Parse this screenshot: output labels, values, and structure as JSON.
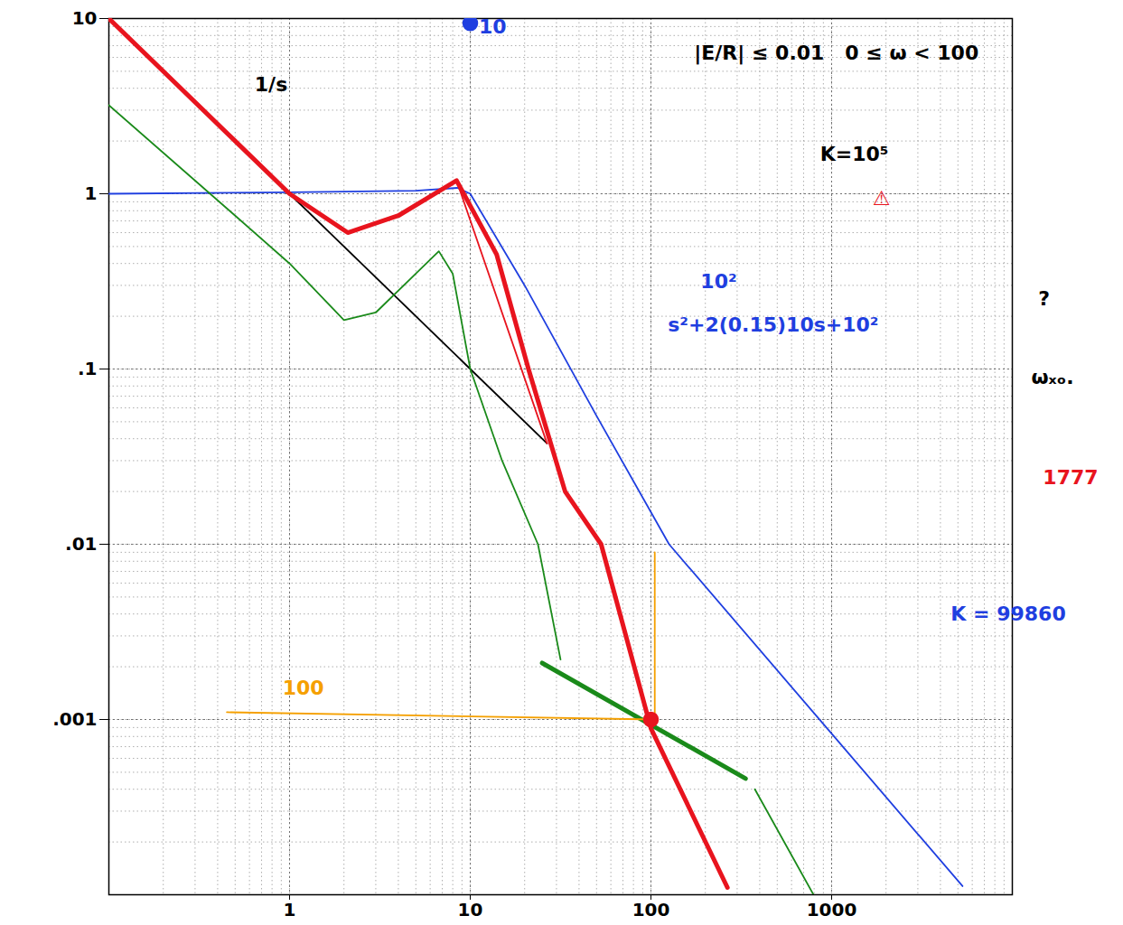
{
  "chart_data": {
    "type": "line",
    "log": true,
    "grid": true,
    "xlim": [
      0.1,
      10000
    ],
    "ylim": [
      0.0001,
      10
    ],
    "xticks": [
      1,
      10,
      100,
      1000
    ],
    "yticks": [
      {
        "value": 0.001,
        "label": ".001"
      },
      {
        "value": 0.01,
        "label": ".01"
      },
      {
        "value": 0.1,
        "label": ".1"
      },
      1,
      10
    ],
    "series": [
      {
        "color": "#000000",
        "line_style": "solid",
        "x": [
          0.1,
          1,
          10,
          26.6
        ],
        "values": [
          10,
          1,
          0.1,
          0.0376
        ]
      },
      {
        "color": "#1f3fe0",
        "line_style": "solid",
        "x": [
          0.1,
          1,
          5,
          8.5,
          10,
          20,
          50,
          126,
          1000,
          5300
        ],
        "values": [
          1,
          1.02,
          1.04,
          1.08,
          1,
          0.3,
          0.054,
          0.01,
          0.00083,
          0.000112
        ]
      },
      {
        "color": "#1a8a1a",
        "line_style": "solid",
        "x": [
          0.1,
          0.5,
          1,
          2,
          3,
          5,
          6.7,
          8,
          10,
          15,
          23.7,
          31.6
        ],
        "values": [
          3.2,
          0.75,
          0.4,
          0.19,
          0.21,
          0.35,
          0.47,
          0.35,
          0.1,
          0.03,
          0.01,
          0.0022
        ]
      },
      {
        "color": "#1a8a1a",
        "line_style": "thick",
        "x": [
          25,
          334
        ],
        "values": [
          0.0021,
          0.00046
        ]
      },
      {
        "color": "#1a8a1a",
        "line_style": "solid",
        "x": [
          376,
          794
        ],
        "values": [
          0.0004,
          0.0001
        ]
      },
      {
        "color": "#e8141e",
        "line_style": "solid",
        "x": [
          8.4,
          26.6
        ],
        "values": [
          1.19,
          0.0376
        ]
      },
      {
        "color": "#e8141e",
        "line_style": "thick",
        "x": [
          0.1,
          0.5,
          1,
          2.1,
          4,
          8.4,
          14,
          21,
          33.5,
          53,
          100,
          265
        ],
        "values": [
          10,
          2,
          1,
          0.6,
          0.75,
          1.19,
          0.45,
          0.1,
          0.02,
          0.01,
          0.00089,
          0.00011
        ]
      },
      {
        "color": "#f5a000",
        "line_style": "solid",
        "x": [
          0.45,
          105,
          105
        ],
        "values": [
          0.0011,
          0.001,
          0.009
        ]
      },
      {
        "type": "scatter",
        "color": "#e8141e",
        "marker": "circle",
        "x": [
          100
        ],
        "values": [
          0.001
        ]
      },
      {
        "type": "scatter",
        "color": "#1f3fe0",
        "marker": "circle",
        "x": [
          10
        ],
        "values": [
          9.4
        ]
      }
    ],
    "annotations": [
      {
        "text": "10",
        "x": 13.3,
        "y": 8.9,
        "color": "#1f3fe0"
      },
      {
        "text": "1/s",
        "x": 0.79,
        "y": 4.2,
        "color": "#000000"
      },
      {
        "text": "|E/R| ≤ 0.01   0 ≤ ω < 100",
        "x": 1062,
        "y": 6.3,
        "color": "#000000"
      },
      {
        "text": "K=10⁵",
        "x": 1334,
        "y": 1.68,
        "color": "#000000"
      },
      {
        "text": "⚠",
        "x": 1884,
        "y": 0.94,
        "color": "#e8141e"
      },
      {
        "text": "?",
        "x": 15000,
        "y": 0.25,
        "color": "#000000"
      },
      {
        "text": "ωₓₒ.",
        "x": 16700,
        "y": 0.089,
        "color": "#000000"
      },
      {
        "text": "1777",
        "x": 21000,
        "y": 0.024,
        "color": "#e8141e"
      },
      {
        "text": "K = 99860",
        "x": 9500,
        "y": 0.004,
        "color": "#1f3fe0"
      },
      {
        "text": "10²",
        "x": 237,
        "y": 0.316,
        "color": "#1f3fe0"
      },
      {
        "text": "s²+2(0.15)10s+10²",
        "x": 475,
        "y": 0.178,
        "color": "#1f3fe0"
      },
      {
        "text": "100",
        "x": 1.19,
        "y": 0.0015,
        "color": "#f5a000"
      }
    ]
  }
}
